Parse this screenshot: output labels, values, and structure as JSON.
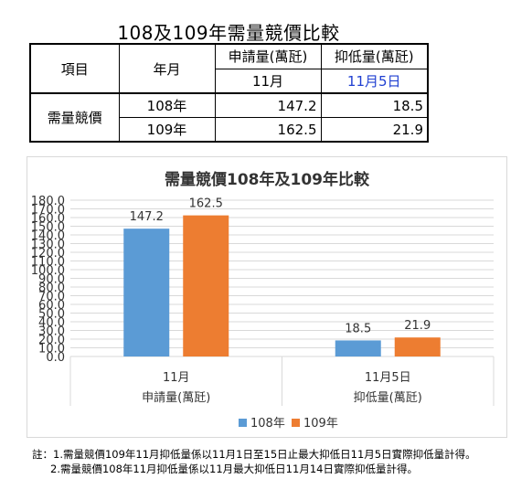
{
  "table": {
    "title": "108及109年需量競價比較",
    "header": {
      "item": "項目",
      "year": "年月",
      "apply": "申請量(萬瓩)",
      "lower": "抑低量(萬瓩)",
      "apply_month": "11月",
      "lower_date": "11月5日"
    },
    "row_group": "需量競價",
    "rows": [
      {
        "year": "108年",
        "apply": "147.2",
        "lower": "18.5"
      },
      {
        "year": "109年",
        "apply": "162.5",
        "lower": "21.9"
      }
    ]
  },
  "chart_data": {
    "type": "bar",
    "title": "需量競價108年及109年比較",
    "categories": [
      "11月",
      "11月5日"
    ],
    "category_groups": [
      "申請量(萬瓩)",
      "抑低量(萬瓩)"
    ],
    "series": [
      {
        "name": "108年",
        "values": [
          147.2,
          18.5
        ],
        "labels": [
          "147.2",
          "18.5"
        ],
        "color": "#5b9bd5"
      },
      {
        "name": "109年",
        "values": [
          162.5,
          21.9
        ],
        "labels": [
          "162.5",
          "21.9"
        ],
        "color": "#ed7d31"
      }
    ],
    "ylim": [
      0,
      180
    ],
    "yticks": [
      "0.0",
      "10.0",
      "20.0",
      "30.0",
      "40.0",
      "50.0",
      "60.0",
      "70.0",
      "80.0",
      "90.0",
      "100.0",
      "110.0",
      "120.0",
      "130.0",
      "140.0",
      "150.0",
      "160.0",
      "170.0",
      "180.0"
    ],
    "grid": true,
    "legend_position": "bottom"
  },
  "notes": {
    "line1": "註：1.需量競價109年11月抑低量係以11月1日至15日止最大抑低日11月5日實際抑低量計得。",
    "line2": "2.需量競價108年11月抑低量係以11月最大抑低日11月14日實際抑低量計得。"
  }
}
